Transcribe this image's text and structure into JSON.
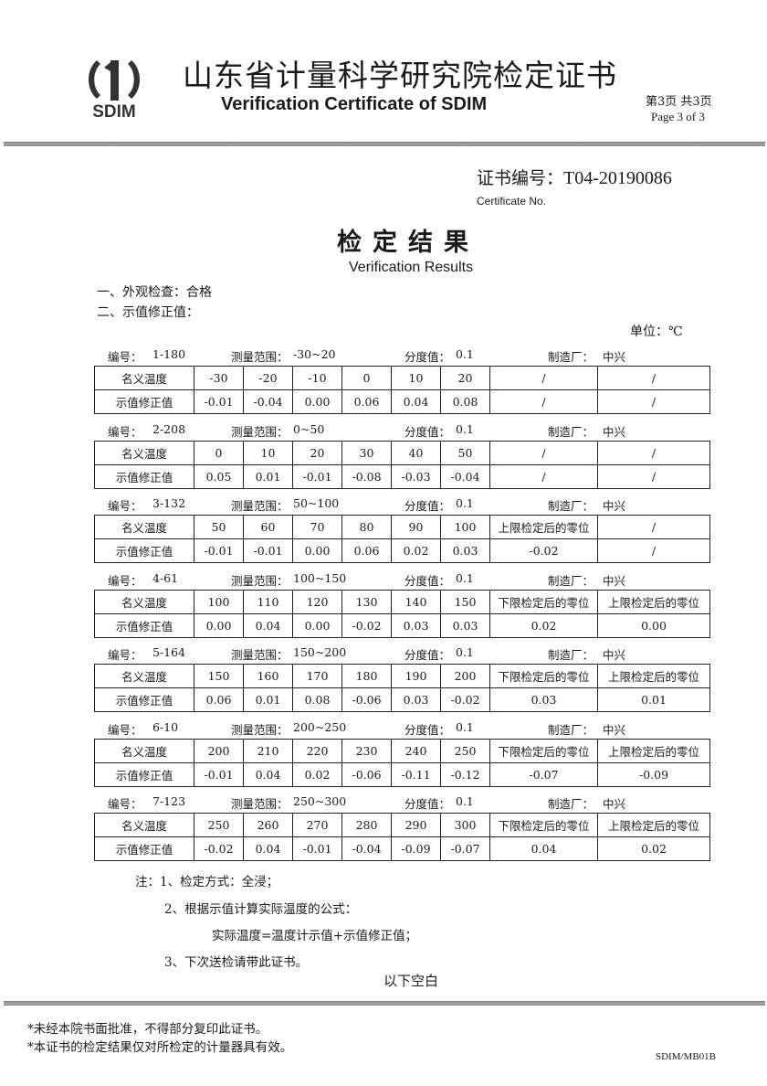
{
  "header": {
    "logo_text": "SDIM",
    "title_cn": "山东省计量科学研究院检定证书",
    "title_en": "Verification Certificate of SDIM",
    "page_cn": "第3页 共3页",
    "page_en": "Page 3  of 3"
  },
  "certificate": {
    "label": "证书编号：",
    "number": "T04-20190086",
    "label_en": "Certificate No."
  },
  "heading": {
    "cn": "检定结果",
    "en": "Verification Results"
  },
  "sections": {
    "appearance": "一、外观检查：合格",
    "correction": "二、示值修正值："
  },
  "unit": "单位：℃",
  "labels": {
    "serial": "编号：",
    "range": "测量范围：",
    "division": "分度值：",
    "maker": "制造厂：",
    "nominal": "名义温度",
    "correction": "示值修正值"
  },
  "thermometers": [
    {
      "serial": "1-180",
      "range": "-30~20",
      "division": "0.1",
      "maker": "中兴",
      "nominal": [
        "-30",
        "-20",
        "-10",
        "0",
        "10",
        "20",
        "/",
        "/"
      ],
      "correction": [
        "-0.01",
        "-0.04",
        "0.00",
        "0.06",
        "0.04",
        "0.08",
        "/",
        "/"
      ]
    },
    {
      "serial": "2-208",
      "range": "0~50",
      "division": "0.1",
      "maker": "中兴",
      "nominal": [
        "0",
        "10",
        "20",
        "30",
        "40",
        "50",
        "/",
        "/"
      ],
      "correction": [
        "0.05",
        "0.01",
        "-0.01",
        "-0.08",
        "-0.03",
        "-0.04",
        "/",
        "/"
      ]
    },
    {
      "serial": "3-132",
      "range": "50~100",
      "division": "0.1",
      "maker": "中兴",
      "nominal": [
        "50",
        "60",
        "70",
        "80",
        "90",
        "100",
        "上限检定后的零位",
        "/"
      ],
      "correction": [
        "-0.01",
        "-0.01",
        "0.00",
        "0.06",
        "0.02",
        "0.03",
        "-0.02",
        "/"
      ]
    },
    {
      "serial": "4-61",
      "range": "100~150",
      "division": "0.1",
      "maker": "中兴",
      "nominal": [
        "100",
        "110",
        "120",
        "130",
        "140",
        "150",
        "下限检定后的零位",
        "上限检定后的零位"
      ],
      "correction": [
        "0.00",
        "0.04",
        "0.00",
        "-0.02",
        "0.03",
        "0.03",
        "0.02",
        "0.00"
      ]
    },
    {
      "serial": "5-164",
      "range": "150~200",
      "division": "0.1",
      "maker": "中兴",
      "nominal": [
        "150",
        "160",
        "170",
        "180",
        "190",
        "200",
        "下限检定后的零位",
        "上限检定后的零位"
      ],
      "correction": [
        "0.06",
        "0.01",
        "0.08",
        "-0.06",
        "0.03",
        "-0.02",
        "0.03",
        "0.01"
      ]
    },
    {
      "serial": "6-10",
      "range": "200~250",
      "division": "0.1",
      "maker": "中兴",
      "nominal": [
        "200",
        "210",
        "220",
        "230",
        "240",
        "250",
        "下限检定后的零位",
        "上限检定后的零位"
      ],
      "correction": [
        "-0.01",
        "0.04",
        "0.02",
        "-0.06",
        "-0.11",
        "-0.12",
        "-0.07",
        "-0.09"
      ]
    },
    {
      "serial": "7-123",
      "range": "250~300",
      "division": "0.1",
      "maker": "中兴",
      "nominal": [
        "250",
        "260",
        "270",
        "280",
        "290",
        "300",
        "下限检定后的零位",
        "上限检定后的零位"
      ],
      "correction": [
        "-0.02",
        "0.04",
        "-0.01",
        "-0.04",
        "-0.09",
        "-0.07",
        "0.04",
        "0.02"
      ]
    }
  ],
  "notes": {
    "n1": "注：1、检定方式：全浸；",
    "n2": "2、根据示值计算实际温度的公式：",
    "formula": "实际温度=温度计示值+示值修正值；",
    "n3": "3、下次送检请带此证书。",
    "blank": "以下空白"
  },
  "footer": {
    "f1": "*未经本院书面批准，不得部分复印此证书。",
    "f2": "*本证书的检定结果仅对所检定的计量器具有效。",
    "form_code": "SDIM/MB01B"
  }
}
